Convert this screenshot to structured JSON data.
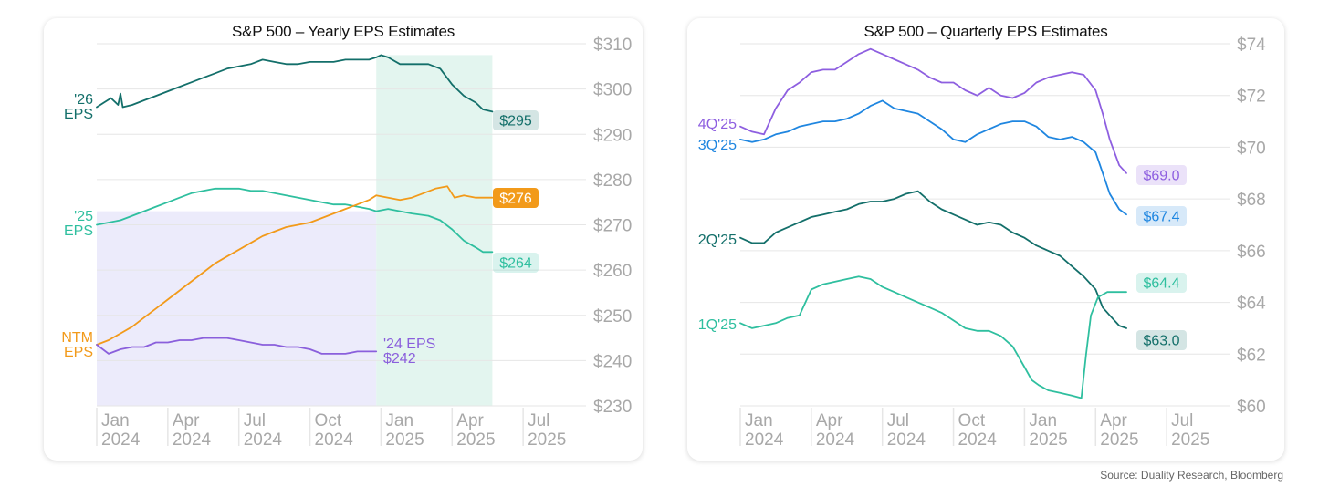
{
  "source": "Source: Duality Research, Bloomberg",
  "colors": {
    "eps26": "#136f6a",
    "eps25": "#2fbf9f",
    "ntm": "#f29a1a",
    "eps24": "#8a5fdc",
    "q4": "#8e5fe0",
    "q3": "#1f86e0",
    "q2": "#136f6a",
    "q1": "#2fbf9f",
    "shade_purple": "#ecebfb",
    "shade_green": "#e3f5ef",
    "grid": "#e6e6e6",
    "axis_text": "#a8a8a8"
  },
  "chart_data": [
    {
      "type": "line",
      "title": "S&P 500 – Yearly EPS Estimates",
      "x_ticks": [
        {
          "x": 0,
          "line1": "Jan",
          "line2": "2024"
        },
        {
          "x": 3,
          "line1": "Apr",
          "line2": "2024"
        },
        {
          "x": 6,
          "line1": "Jul",
          "line2": "2024"
        },
        {
          "x": 9,
          "line1": "Oct",
          "line2": "2024"
        },
        {
          "x": 12,
          "line1": "Jan",
          "line2": "2025"
        },
        {
          "x": 15,
          "line1": "Apr",
          "line2": "2025"
        },
        {
          "x": 18,
          "line1": "Jul",
          "line2": "2025"
        }
      ],
      "xlim": [
        0,
        20.5
      ],
      "ylim": [
        230,
        310
      ],
      "y_ticks": [
        230,
        240,
        250,
        260,
        270,
        280,
        290,
        300,
        310
      ],
      "y_tick_labels": [
        "$230",
        "$240",
        "$250",
        "$260",
        "$270",
        "$280",
        "$290",
        "$300",
        "$310"
      ],
      "shaded_regions": [
        {
          "x0": 0,
          "x1": 11.8,
          "y0": 230,
          "y1": 273,
          "color_key": "shade_purple"
        },
        {
          "x0": 11.8,
          "x1": 16.7,
          "y0": 230,
          "y1": 307.5,
          "color_key": "shade_green"
        }
      ],
      "series": [
        {
          "label_lines": [
            "'26",
            "EPS"
          ],
          "color_key": "eps26",
          "end_label": "$295",
          "x": [
            0,
            0.3,
            0.6,
            0.9,
            1.0,
            1.1,
            1.5,
            2.0,
            2.5,
            3.0,
            3.5,
            4.0,
            4.5,
            5.0,
            5.5,
            6.0,
            6.5,
            7.0,
            7.5,
            8.0,
            8.5,
            9.0,
            9.5,
            10.0,
            10.5,
            11.0,
            11.5,
            11.8,
            12.0,
            12.3,
            12.8,
            13.3,
            14.0,
            14.5,
            15.0,
            15.5,
            16.0,
            16.3,
            16.7
          ],
          "y": [
            296,
            297,
            298,
            296.5,
            299,
            296,
            296.5,
            297.5,
            298.5,
            299.5,
            300.5,
            301.5,
            302.5,
            303.5,
            304.5,
            305,
            305.5,
            306.5,
            306,
            305.5,
            305.5,
            306,
            306,
            306,
            306.5,
            306.5,
            306.5,
            307,
            307.5,
            307,
            305.5,
            305.5,
            305.5,
            304.5,
            301,
            298.5,
            297,
            295.5,
            295
          ]
        },
        {
          "label_lines": [
            "'25",
            "EPS"
          ],
          "color_key": "eps25",
          "end_label": "$264",
          "x": [
            0,
            0.5,
            1.0,
            1.5,
            2.0,
            2.5,
            3.0,
            3.5,
            4.0,
            4.5,
            5.0,
            5.5,
            6.0,
            6.5,
            7.0,
            7.5,
            8.0,
            8.5,
            9.0,
            9.5,
            10.0,
            10.5,
            11.0,
            11.5,
            11.8,
            12.3,
            12.8,
            13.3,
            14.0,
            14.5,
            15.0,
            15.5,
            16.0,
            16.3,
            16.7
          ],
          "y": [
            270,
            270.5,
            271,
            272,
            273,
            274,
            275,
            276,
            277,
            277.5,
            278,
            278,
            278,
            277.5,
            277.5,
            277,
            276.5,
            276,
            275.5,
            275,
            274.5,
            274.5,
            274,
            273.5,
            273,
            273.5,
            273,
            272.5,
            272,
            271,
            269,
            266.5,
            265,
            264,
            264
          ]
        },
        {
          "label_lines": [
            "NTM",
            "EPS"
          ],
          "color_key": "ntm",
          "end_label": "$276",
          "x": [
            0,
            0.5,
            1.0,
            1.5,
            2.0,
            2.5,
            3.0,
            3.5,
            4.0,
            4.5,
            5.0,
            5.5,
            6.0,
            6.5,
            7.0,
            7.5,
            8.0,
            8.5,
            9.0,
            9.5,
            10.0,
            10.5,
            11.0,
            11.5,
            11.8,
            12.3,
            12.8,
            13.3,
            13.8,
            14.3,
            14.8,
            15.1,
            15.5,
            16.0,
            16.3,
            16.7
          ],
          "y": [
            243.5,
            244.5,
            246,
            247.5,
            249.5,
            251.5,
            253.5,
            255.5,
            257.5,
            259.5,
            261.5,
            263,
            264.5,
            266,
            267.5,
            268.5,
            269.5,
            270,
            270.5,
            271.5,
            272.5,
            273.5,
            274.5,
            275.5,
            276.5,
            276,
            275.5,
            276,
            277,
            278,
            278.5,
            276,
            276.5,
            276,
            276,
            276
          ]
        },
        {
          "label_lines": [
            "'24 EPS",
            "$242"
          ],
          "color_key": "eps24",
          "end_label": "",
          "x": [
            0,
            0.5,
            1.0,
            1.5,
            2.0,
            2.5,
            3.0,
            3.5,
            4.0,
            4.5,
            5.0,
            5.5,
            6.0,
            6.5,
            7.0,
            7.5,
            8.0,
            8.5,
            9.0,
            9.5,
            10.0,
            10.5,
            11.0,
            11.5,
            11.8
          ],
          "y": [
            243.5,
            241.5,
            242.5,
            243,
            243,
            244,
            244,
            244.5,
            244.5,
            245,
            245,
            245,
            244.5,
            244,
            243.5,
            243.5,
            243,
            243,
            242.5,
            241.5,
            241.5,
            241.5,
            242,
            242,
            242
          ]
        }
      ]
    },
    {
      "type": "line",
      "title": "S&P 500 – Quarterly EPS Estimates",
      "x_ticks": [
        {
          "x": 0,
          "line1": "Jan",
          "line2": "2024"
        },
        {
          "x": 3,
          "line1": "Apr",
          "line2": "2024"
        },
        {
          "x": 6,
          "line1": "Jul",
          "line2": "2024"
        },
        {
          "x": 9,
          "line1": "Oct",
          "line2": "2024"
        },
        {
          "x": 12,
          "line1": "Jan",
          "line2": "2025"
        },
        {
          "x": 15,
          "line1": "Apr",
          "line2": "2025"
        },
        {
          "x": 18,
          "line1": "Jul",
          "line2": "2025"
        }
      ],
      "xlim": [
        0,
        20.5
      ],
      "ylim": [
        60,
        74
      ],
      "y_ticks": [
        60,
        62,
        64,
        66,
        68,
        70,
        72,
        74
      ],
      "y_tick_labels": [
        "$60",
        "$62",
        "$64",
        "$66",
        "$68",
        "$70",
        "$72",
        "$74"
      ],
      "shaded_regions": [],
      "series": [
        {
          "label_lines": [
            "4Q'25"
          ],
          "color_key": "q4",
          "end_label": "$69.0",
          "x": [
            0,
            0.5,
            1.0,
            1.5,
            2.0,
            2.5,
            3.0,
            3.5,
            4.0,
            4.5,
            5.0,
            5.5,
            6.0,
            6.5,
            7.0,
            7.5,
            8.0,
            8.5,
            9.0,
            9.5,
            10.0,
            10.5,
            11.0,
            11.5,
            12.0,
            12.5,
            13.0,
            13.5,
            14.0,
            14.5,
            15.0,
            15.3,
            15.6,
            16.0,
            16.3
          ],
          "y": [
            70.8,
            70.6,
            70.5,
            71.5,
            72.2,
            72.5,
            72.9,
            73.0,
            73.0,
            73.3,
            73.6,
            73.8,
            73.6,
            73.4,
            73.2,
            73.0,
            72.7,
            72.5,
            72.5,
            72.2,
            72.0,
            72.3,
            72.0,
            71.9,
            72.1,
            72.5,
            72.7,
            72.8,
            72.9,
            72.8,
            72.2,
            71.3,
            70.3,
            69.3,
            69.0
          ]
        },
        {
          "label_lines": [
            "3Q'25"
          ],
          "color_key": "q3",
          "end_label": "$67.4",
          "x": [
            0,
            0.5,
            1.0,
            1.5,
            2.0,
            2.5,
            3.0,
            3.5,
            4.0,
            4.5,
            5.0,
            5.5,
            6.0,
            6.5,
            7.0,
            7.5,
            8.0,
            8.5,
            9.0,
            9.5,
            10.0,
            10.5,
            11.0,
            11.5,
            12.0,
            12.5,
            13.0,
            13.5,
            14.0,
            14.5,
            15.0,
            15.3,
            15.6,
            16.0,
            16.3
          ],
          "y": [
            70.3,
            70.2,
            70.3,
            70.5,
            70.6,
            70.8,
            70.9,
            71.0,
            71.0,
            71.1,
            71.3,
            71.6,
            71.8,
            71.5,
            71.4,
            71.3,
            71.0,
            70.7,
            70.3,
            70.2,
            70.5,
            70.7,
            70.9,
            71.0,
            71.0,
            70.8,
            70.4,
            70.3,
            70.4,
            70.2,
            69.8,
            69.0,
            68.2,
            67.6,
            67.4
          ]
        },
        {
          "label_lines": [
            "2Q'25"
          ],
          "color_key": "q2",
          "end_label": "$63.0",
          "x": [
            0,
            0.5,
            1.0,
            1.5,
            2.0,
            2.5,
            3.0,
            3.5,
            4.0,
            4.5,
            5.0,
            5.5,
            6.0,
            6.5,
            7.0,
            7.5,
            8.0,
            8.5,
            9.0,
            9.5,
            10.0,
            10.5,
            11.0,
            11.5,
            12.0,
            12.5,
            13.0,
            13.5,
            14.0,
            14.5,
            15.0,
            15.3,
            15.6,
            16.0,
            16.3
          ],
          "y": [
            66.5,
            66.3,
            66.3,
            66.7,
            66.9,
            67.1,
            67.3,
            67.4,
            67.5,
            67.6,
            67.8,
            67.9,
            67.9,
            68.0,
            68.2,
            68.3,
            67.9,
            67.6,
            67.4,
            67.2,
            67.0,
            67.1,
            67.0,
            66.7,
            66.5,
            66.2,
            66.0,
            65.8,
            65.4,
            65.0,
            64.5,
            63.8,
            63.5,
            63.1,
            63.0
          ]
        },
        {
          "label_lines": [
            "1Q'25"
          ],
          "color_key": "q1",
          "end_label": "$64.4",
          "x": [
            0,
            0.5,
            1.0,
            1.5,
            2.0,
            2.5,
            3.0,
            3.5,
            4.0,
            4.5,
            5.0,
            5.5,
            6.0,
            6.5,
            7.0,
            7.5,
            8.0,
            8.5,
            9.0,
            9.5,
            10.0,
            10.5,
            11.0,
            11.5,
            12.0,
            12.3,
            12.6,
            13.0,
            13.5,
            14.0,
            14.4,
            14.6,
            14.8,
            15.1,
            15.5,
            16.0,
            16.3
          ],
          "y": [
            63.2,
            63.0,
            63.1,
            63.2,
            63.4,
            63.5,
            64.5,
            64.7,
            64.8,
            64.9,
            65.0,
            64.9,
            64.6,
            64.4,
            64.2,
            64.0,
            63.8,
            63.6,
            63.3,
            63.0,
            62.9,
            62.9,
            62.7,
            62.3,
            61.5,
            61.0,
            60.8,
            60.6,
            60.5,
            60.4,
            60.3,
            62.0,
            63.5,
            64.2,
            64.4,
            64.4,
            64.4
          ]
        }
      ]
    }
  ]
}
